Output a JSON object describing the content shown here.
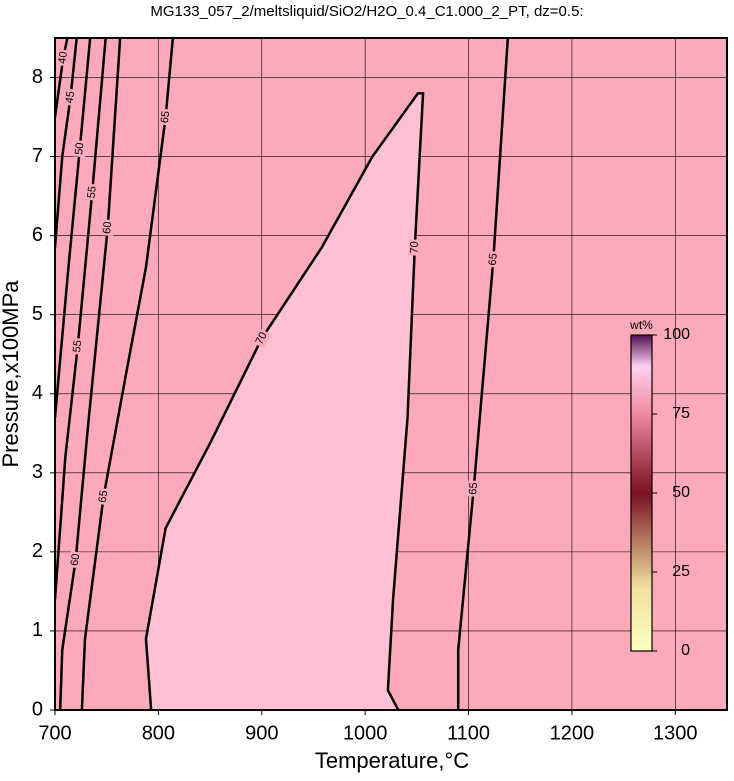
{
  "chart_data": {
    "type": "contour",
    "title": "MG133_057_2/meltsliquid/SiO2/H2O_0.4_C1.000_2_PT, dz=0.5:",
    "x_label": "Temperature,°C",
    "y_label": "Pressure,x100MPa",
    "xlim": [
      700,
      1350
    ],
    "xticks": [
      700,
      800,
      900,
      1000,
      1100,
      1200,
      1300
    ],
    "ylim": [
      0,
      8.5
    ],
    "yticks": [
      0,
      1,
      2,
      3,
      4,
      5,
      6,
      7,
      8
    ],
    "grid": true,
    "background": "#fcaab9",
    "color": "#000000",
    "contours": [
      {
        "level": 40,
        "x": [
          700,
          708,
          712
        ],
        "y": [
          7.5,
          8.25,
          8.5
        ]
      },
      {
        "level": 45,
        "x": [
          700,
          707,
          715,
          721
        ],
        "y": [
          5.85,
          7.0,
          7.75,
          8.5
        ]
      },
      {
        "level": 50,
        "x": [
          700,
          713,
          724,
          734
        ],
        "y": [
          3.7,
          5.6,
          7.1,
          8.5
        ]
      },
      {
        "level": 55,
        "x": [
          700,
          710,
          722,
          736,
          749
        ],
        "y": [
          1.4,
          3.2,
          4.6,
          6.55,
          8.5
        ]
      },
      {
        "level": 60,
        "x": [
          705,
          707,
          720,
          732,
          751,
          763
        ],
        "y": [
          0,
          0.76,
          1.9,
          3.6,
          6.1,
          8.5
        ]
      },
      {
        "level": 65,
        "x": [
          726,
          729,
          747,
          768,
          788,
          807,
          814
        ],
        "y": [
          0,
          0.9,
          2.7,
          4.2,
          5.6,
          7.5,
          8.5
        ]
      },
      {
        "level": 70,
        "x": [
          793,
          788,
          807,
          851,
          900,
          958,
          1007,
          1051,
          1056,
          1048,
          1041,
          1027,
          1022,
          1032
        ],
        "y": [
          0,
          0.9,
          2.3,
          3.4,
          4.7,
          5.85,
          7.0,
          7.8,
          7.8,
          5.85,
          3.7,
          1.4,
          0.25,
          0
        ]
      },
      {
        "level": 65,
        "x": [
          1090,
          1090,
          1105,
          1124,
          1138
        ],
        "y": [
          0,
          0.76,
          2.8,
          5.7,
          8.5
        ]
      }
    ],
    "colorbar": {
      "label": "wt%",
      "lim": [
        0,
        100
      ],
      "ticks": [
        0,
        25,
        50,
        75,
        100
      ]
    }
  }
}
